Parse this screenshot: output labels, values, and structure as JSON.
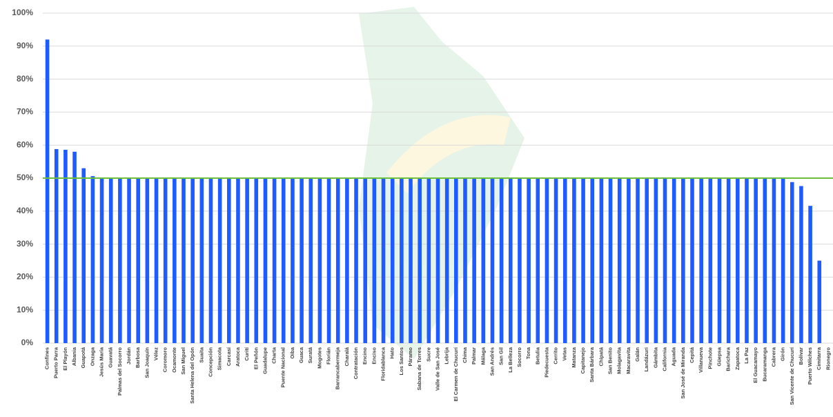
{
  "chart_data": {
    "type": "bar",
    "categories": [
      "Confines",
      "Puerto Parra",
      "El Playón",
      "Albania",
      "Guapotá",
      "Onzaga",
      "Jesús María",
      "Guavatá",
      "Palmas del Socorro",
      "Jordán",
      "Barbosa",
      "San Joaquín",
      "Vélez",
      "Coromoro",
      "Ocamonte",
      "San Miguel",
      "Santa Helena del Opón",
      "Suaita",
      "Concepción",
      "Simacota",
      "Carcasí",
      "Aratoca",
      "Curití",
      "El Peñón",
      "Guadalupe",
      "Charta",
      "Puente Nacional",
      "Oiba",
      "Guaca",
      "Suratá",
      "Mogotes",
      "Florián",
      "Barrancabermeja",
      "Charalá",
      "Contratación",
      "Encino",
      "Enciso",
      "Floridablanca",
      "Hato",
      "Los Santos",
      "Páramo",
      "Sabana de Torres",
      "Sucre",
      "Valle de San José",
      "Lebrija",
      "El Carmen de Chucurí",
      "Chima",
      "Palmar",
      "Málaga",
      "San Andrés",
      "San Gil",
      "La Belleza",
      "Socorro",
      "Tona",
      "Betulia",
      "Piedecuesta",
      "Cerrito",
      "Vetas",
      "Matanza",
      "Capitanejo",
      "Santa Bárbara",
      "Chipatá",
      "San Benito",
      "Molagavita",
      "Macaravita",
      "Galán",
      "Landázuri",
      "Gámbita",
      "California",
      "Aguada",
      "San José de Miranda",
      "Cepitá",
      "Villanueva",
      "Pinchote",
      "Güepsa",
      "Barichara",
      "Zapatoca",
      "La Paz",
      "El Guacamayo",
      "Bucaramanga",
      "Cabrera",
      "Girón",
      "San Vicente de Chucurí",
      "Bolívar",
      "Puerto Wilches",
      "Cimitarra",
      "Rionegro"
    ],
    "values": [
      92,
      58.8,
      58.6,
      58,
      53,
      50.6,
      50,
      50,
      50,
      50,
      50,
      50,
      50,
      50,
      50,
      50,
      50,
      50,
      50,
      50,
      50,
      50,
      50,
      50,
      50,
      50,
      50,
      50,
      50,
      50,
      50,
      50,
      50,
      50,
      50,
      50,
      50,
      50,
      50,
      50,
      50,
      50,
      50,
      50,
      50,
      50,
      50,
      50,
      50,
      50,
      50,
      50,
      50,
      50,
      50,
      50,
      50,
      50,
      50,
      50,
      50,
      50,
      50,
      50,
      50,
      50,
      50,
      50,
      50,
      50,
      50,
      50,
      50,
      50,
      50,
      50,
      50,
      50,
      50,
      50,
      50,
      50,
      48.8,
      47.6,
      41.6,
      25,
      0
    ],
    "color": "#1f5cff",
    "ylim": [
      0,
      100
    ],
    "yticks": [
      {
        "value": 0,
        "label": "0%"
      },
      {
        "value": 10,
        "label": "10%"
      },
      {
        "value": 20,
        "label": "20%"
      },
      {
        "value": 30,
        "label": "30%"
      },
      {
        "value": 40,
        "label": "40%"
      },
      {
        "value": 50,
        "label": "50%"
      },
      {
        "value": 60,
        "label": "60%"
      },
      {
        "value": 70,
        "label": "70%"
      },
      {
        "value": 80,
        "label": "80%"
      },
      {
        "value": 90,
        "label": "90%"
      },
      {
        "value": 100,
        "label": "100%"
      }
    ],
    "grid": true,
    "reference_line": {
      "value": 50,
      "color": "#6cbf3a"
    }
  }
}
